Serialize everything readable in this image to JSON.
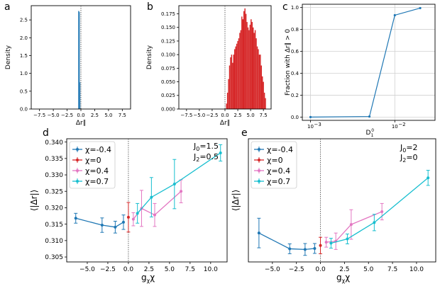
{
  "panels": {
    "a": {
      "letter": "a"
    },
    "b": {
      "letter": "b"
    },
    "c": {
      "letter": "c"
    },
    "d": {
      "letter": "d",
      "annotation": [
        "J0=1.5",
        "J2=0.5"
      ]
    },
    "e": {
      "letter": "e",
      "annotation": [
        "J0=2",
        "J2=0"
      ]
    }
  },
  "colors": {
    "hist_blue": "#1f77b4",
    "hist_red": "#d62728",
    "chi_m04": "#1f77b4",
    "chi_0": "#d62728",
    "chi_04": "#e377c2",
    "chi_07": "#17becf",
    "grid": "#d0d0d0"
  },
  "chart_data": [
    {
      "id": "a",
      "type": "bar",
      "title": "",
      "xlabel": "Δr∥",
      "ylabel": "Density",
      "xlim": [
        -9,
        9
      ],
      "ylim": [
        0,
        2.9
      ],
      "xticks": [
        "−7.5",
        "−5.0",
        "−2.5",
        "0.0",
        "2.5",
        "5.0",
        "7.5"
      ],
      "xtick_values": [
        -7.5,
        -5.0,
        -2.5,
        0.0,
        2.5,
        5.0,
        7.5
      ],
      "yticks": [
        "0.0",
        "0.5",
        "1.0",
        "1.5",
        "2.0",
        "2.5"
      ],
      "ytick_values": [
        0.0,
        0.5,
        1.0,
        1.5,
        2.0,
        2.5
      ],
      "bins": [
        {
          "x0": -0.5,
          "x1": -0.4,
          "y": 2.75
        },
        {
          "x0": -0.4,
          "x1": -0.3,
          "y": 2.75
        },
        {
          "x0": -0.3,
          "x1": -0.2,
          "y": 2.72
        },
        {
          "x0": -0.2,
          "x1": -0.1,
          "y": 0.75
        }
      ],
      "vline": 0
    },
    {
      "id": "b",
      "type": "bar",
      "title": "",
      "xlabel": "Δr∥",
      "ylabel": "Density",
      "xlim": [
        -9,
        9
      ],
      "ylim": [
        0,
        0.19
      ],
      "xticks": [
        "−7.5",
        "−5.0",
        "−2.5",
        "0.0",
        "2.5",
        "5.0",
        "7.5"
      ],
      "xtick_values": [
        -7.5,
        -5.0,
        -2.5,
        0.0,
        2.5,
        5.0,
        7.5
      ],
      "yticks": [
        "0.000",
        "0.025",
        "0.050",
        "0.075",
        "0.100",
        "0.125",
        "0.150",
        "0.175"
      ],
      "ytick_values": [
        0.0,
        0.025,
        0.05,
        0.075,
        0.1,
        0.125,
        0.15,
        0.175
      ],
      "bin_start": 0.2,
      "bin_width": 0.2,
      "heights": [
        0.01,
        0.03,
        0.055,
        0.08,
        0.095,
        0.1,
        0.085,
        0.1,
        0.11,
        0.115,
        0.12,
        0.125,
        0.13,
        0.14,
        0.145,
        0.17,
        0.165,
        0.18,
        0.185,
        0.175,
        0.16,
        0.15,
        0.145,
        0.155,
        0.165,
        0.16,
        0.15,
        0.14,
        0.145,
        0.13,
        0.115,
        0.11,
        0.1,
        0.1,
        0.08,
        0.06,
        0.05,
        0.03,
        0.02
      ],
      "vline": 0
    },
    {
      "id": "c",
      "type": "line",
      "title": "",
      "xlabel": "D",
      "ylabel": "Fraction with Δr∥ > 0",
      "xscale": "log",
      "xlim": [
        0.0008,
        0.03
      ],
      "ylim": [
        -0.03,
        1.03
      ],
      "xticks": [
        "10",
        "10"
      ],
      "xtick_values": [
        0.001,
        0.01
      ],
      "yticks": [
        "0.0",
        "0.2",
        "0.4",
        "0.6",
        "0.8",
        "1.0"
      ],
      "ytick_values": [
        0.0,
        0.2,
        0.4,
        0.6,
        0.8,
        1.0
      ],
      "grid": true,
      "x": [
        0.001,
        0.005,
        0.01,
        0.02
      ],
      "y": [
        0.0,
        0.005,
        0.93,
        0.995
      ]
    },
    {
      "id": "d",
      "type": "line",
      "title": "",
      "xlabel": "gχχ",
      "ylabel": "⟨|Δr|⟩",
      "xlim": [
        -7.5,
        12
      ],
      "ylim": [
        0.3035,
        0.341
      ],
      "xticks": [
        "−5.0",
        "−2.5",
        "0.0",
        "2.5",
        "5.0",
        "7.5",
        "10.0"
      ],
      "xtick_values": [
        -5.0,
        -2.5,
        0.0,
        2.5,
        5.0,
        7.5,
        10.0
      ],
      "yticks": [
        "0.305",
        "0.310",
        "0.315",
        "0.320",
        "0.325",
        "0.330",
        "0.335",
        "0.340"
      ],
      "ytick_values": [
        0.305,
        0.31,
        0.315,
        0.32,
        0.325,
        0.33,
        0.335,
        0.34
      ],
      "vline": 0,
      "legend": "upper left",
      "series": [
        {
          "name": "χ=-0.4",
          "color_key": "chi_m04",
          "x": [
            -6.4,
            -3.2,
            -1.6,
            -0.6
          ],
          "y": [
            0.3168,
            0.3147,
            0.3141,
            0.3156
          ],
          "err": [
            0.0015,
            0.0022,
            0.0018,
            0.0022
          ]
        },
        {
          "name": "χ=0",
          "color_key": "chi_0",
          "x": [
            0.0
          ],
          "y": [
            0.3171
          ],
          "err": [
            0.0045
          ]
        },
        {
          "name": "χ=0.4",
          "color_key": "chi_04",
          "x": [
            0.6,
            1.6,
            3.2,
            6.4
          ],
          "y": [
            0.3165,
            0.3198,
            0.3178,
            0.325
          ],
          "err": [
            0.002,
            0.0055,
            0.0035,
            0.0035
          ]
        },
        {
          "name": "χ=0.7",
          "color_key": "chi_07",
          "x": [
            1.1,
            2.8,
            5.6,
            11.2
          ],
          "y": [
            0.3183,
            0.3232,
            0.3272,
            0.3367
          ],
          "err": [
            0.003,
            0.006,
            0.0075,
            0.0025
          ]
        }
      ]
    },
    {
      "id": "e",
      "type": "line",
      "title": "",
      "xlabel": "gχχ",
      "ylabel": "⟨|Δr|⟩",
      "xlim": [
        -7.5,
        12
      ],
      "ylim": [
        0.3035,
        0.341
      ],
      "xticks": [
        "−5.0",
        "−2.5",
        "0.0",
        "2.5",
        "5.0",
        "7.5",
        "10.0"
      ],
      "xtick_values": [
        -5.0,
        -2.5,
        0.0,
        2.5,
        5.0,
        7.5,
        10.0
      ],
      "yticks": [],
      "ytick_values": [],
      "vline": 0,
      "legend": "upper left",
      "series": [
        {
          "name": "χ=-0.4",
          "color_key": "chi_m04",
          "x": [
            -6.4,
            -3.2,
            -1.6,
            -0.6
          ],
          "y": [
            0.3123,
            0.3075,
            0.3073,
            0.3076
          ],
          "err": [
            0.0045,
            0.0015,
            0.0018,
            0.0015
          ]
        },
        {
          "name": "χ=0",
          "color_key": "chi_0",
          "x": [
            0.0
          ],
          "y": [
            0.3085
          ],
          "err": [
            0.0025
          ]
        },
        {
          "name": "χ=0.4",
          "color_key": "chi_04",
          "x": [
            0.6,
            1.6,
            3.2,
            6.4
          ],
          "y": [
            0.3095,
            0.3098,
            0.3149,
            0.3188
          ],
          "err": [
            0.0015,
            0.0025,
            0.0045,
            0.0025
          ]
        },
        {
          "name": "χ=0.7",
          "color_key": "chi_07",
          "x": [
            1.1,
            2.8,
            5.6,
            11.2
          ],
          "y": [
            0.3092,
            0.3105,
            0.3155,
            0.3291
          ],
          "err": [
            0.0015,
            0.0015,
            0.0025,
            0.0023
          ]
        }
      ]
    }
  ]
}
